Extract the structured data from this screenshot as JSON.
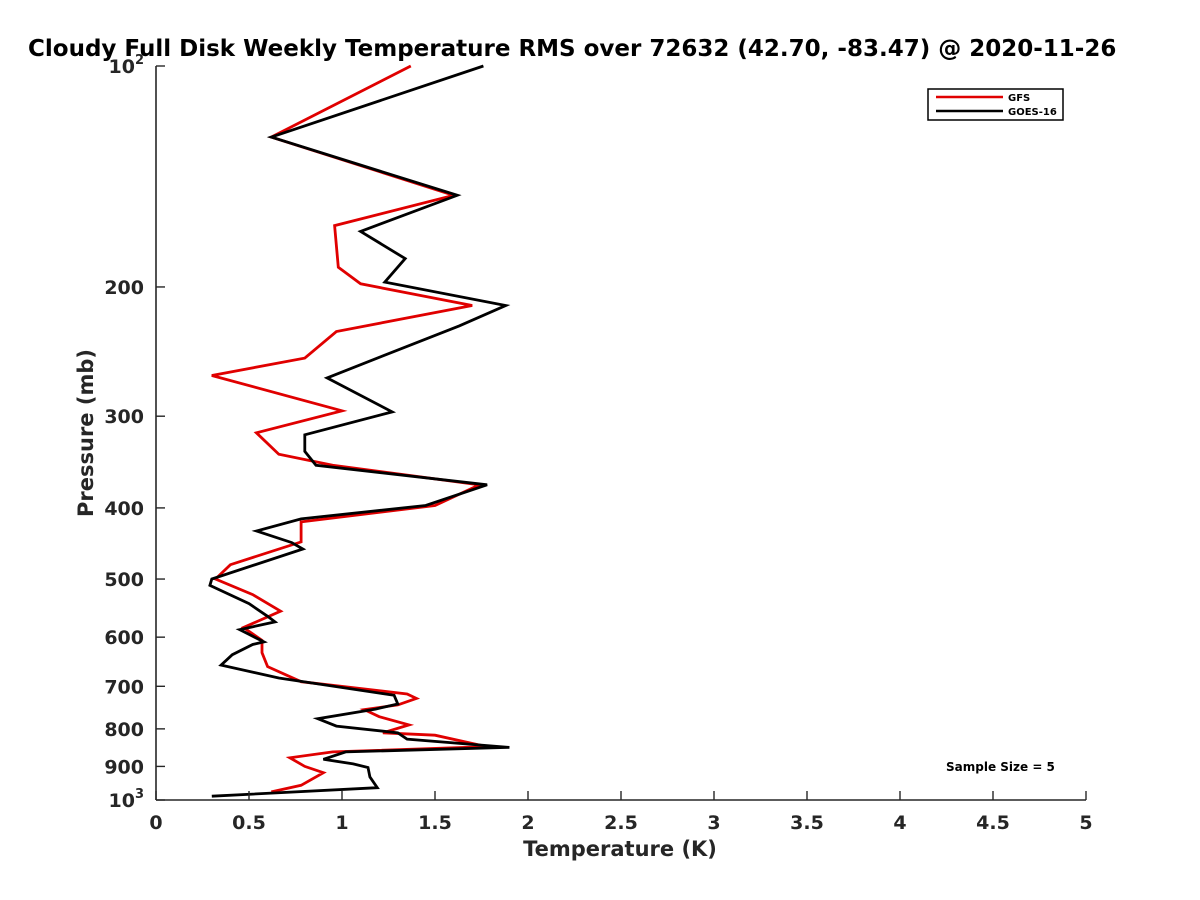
{
  "chart_data": {
    "type": "line",
    "title": "Cloudy Full Disk Weekly Temperature RMS over 72632 (42.70, -83.47) @ 2020-11-26",
    "xlabel": "Temperature (K)",
    "ylabel": "Pressure (mb)",
    "xlim": [
      0,
      5
    ],
    "ylim": [
      100,
      1000
    ],
    "y_scale": "log",
    "y_reversed": true,
    "x_ticks": [
      "0",
      "0.5",
      "1",
      "1.5",
      "2",
      "2.5",
      "3",
      "3.5",
      "4",
      "4.5",
      "5"
    ],
    "y_ticks": [
      {
        "value": 100,
        "base": "10",
        "exp": "2"
      },
      {
        "value": 200,
        "label": "200"
      },
      {
        "value": 300,
        "label": "300"
      },
      {
        "value": 400,
        "label": "400"
      },
      {
        "value": 500,
        "label": "500"
      },
      {
        "value": 600,
        "label": "600"
      },
      {
        "value": 700,
        "label": "700"
      },
      {
        "value": 800,
        "label": "800"
      },
      {
        "value": 900,
        "label": "900"
      },
      {
        "value": 1000,
        "base": "10",
        "exp": "3"
      }
    ],
    "legend_position": "top-right",
    "annotation": "Sample Size = 5",
    "series": [
      {
        "name": "GFS",
        "color": "#e00000",
        "points": [
          [
            1.37,
            100
          ],
          [
            0.62,
            125
          ],
          [
            1.6,
            150
          ],
          [
            0.96,
            165
          ],
          [
            0.98,
            188
          ],
          [
            1.1,
            198
          ],
          [
            1.7,
            212
          ],
          [
            0.97,
            230
          ],
          [
            0.8,
            250
          ],
          [
            0.3,
            264
          ],
          [
            1.0,
            295
          ],
          [
            0.54,
            316
          ],
          [
            0.66,
            338
          ],
          [
            0.95,
            350
          ],
          [
            1.74,
            372
          ],
          [
            1.5,
            397
          ],
          [
            0.78,
            418
          ],
          [
            0.78,
            445
          ],
          [
            0.4,
            478
          ],
          [
            0.32,
            500
          ],
          [
            0.52,
            525
          ],
          [
            0.67,
            553
          ],
          [
            0.47,
            582
          ],
          [
            0.57,
            606
          ],
          [
            0.57,
            630
          ],
          [
            0.6,
            658
          ],
          [
            0.78,
            690
          ],
          [
            1.35,
            717
          ],
          [
            1.4,
            727
          ],
          [
            1.3,
            742
          ],
          [
            1.12,
            753
          ],
          [
            1.2,
            770
          ],
          [
            1.36,
            790
          ],
          [
            1.22,
            810
          ],
          [
            1.5,
            816
          ],
          [
            1.78,
            846
          ],
          [
            0.95,
            860
          ],
          [
            0.72,
            876
          ],
          [
            0.8,
            900
          ],
          [
            0.9,
            918
          ],
          [
            0.78,
            955
          ],
          [
            0.62,
            975
          ]
        ]
      },
      {
        "name": "GOES-16",
        "color": "#000000",
        "points": [
          [
            1.76,
            100
          ],
          [
            0.62,
            125
          ],
          [
            1.62,
            150
          ],
          [
            1.1,
            168
          ],
          [
            1.34,
            183
          ],
          [
            1.23,
            197
          ],
          [
            1.88,
            212
          ],
          [
            1.63,
            226
          ],
          [
            0.92,
            266
          ],
          [
            1.27,
            296
          ],
          [
            0.8,
            318
          ],
          [
            0.8,
            335
          ],
          [
            0.86,
            350
          ],
          [
            1.78,
            372
          ],
          [
            1.45,
            397
          ],
          [
            0.78,
            414
          ],
          [
            0.54,
            430
          ],
          [
            0.73,
            446
          ],
          [
            0.79,
            455
          ],
          [
            0.3,
            500
          ],
          [
            0.29,
            510
          ],
          [
            0.5,
            540
          ],
          [
            0.6,
            562
          ],
          [
            0.64,
            572
          ],
          [
            0.45,
            586
          ],
          [
            0.58,
            609
          ],
          [
            0.52,
            614
          ],
          [
            0.41,
            634
          ],
          [
            0.35,
            655
          ],
          [
            0.66,
            682
          ],
          [
            1.28,
            720
          ],
          [
            1.3,
            740
          ],
          [
            1.18,
            752
          ],
          [
            0.87,
            775
          ],
          [
            0.97,
            793
          ],
          [
            1.3,
            810
          ],
          [
            1.35,
            826
          ],
          [
            1.9,
            848
          ],
          [
            1.02,
            860
          ],
          [
            0.9,
            880
          ],
          [
            1.06,
            893
          ],
          [
            1.14,
            903
          ],
          [
            1.15,
            930
          ],
          [
            1.19,
            962
          ],
          [
            0.3,
            988
          ]
        ]
      }
    ]
  }
}
